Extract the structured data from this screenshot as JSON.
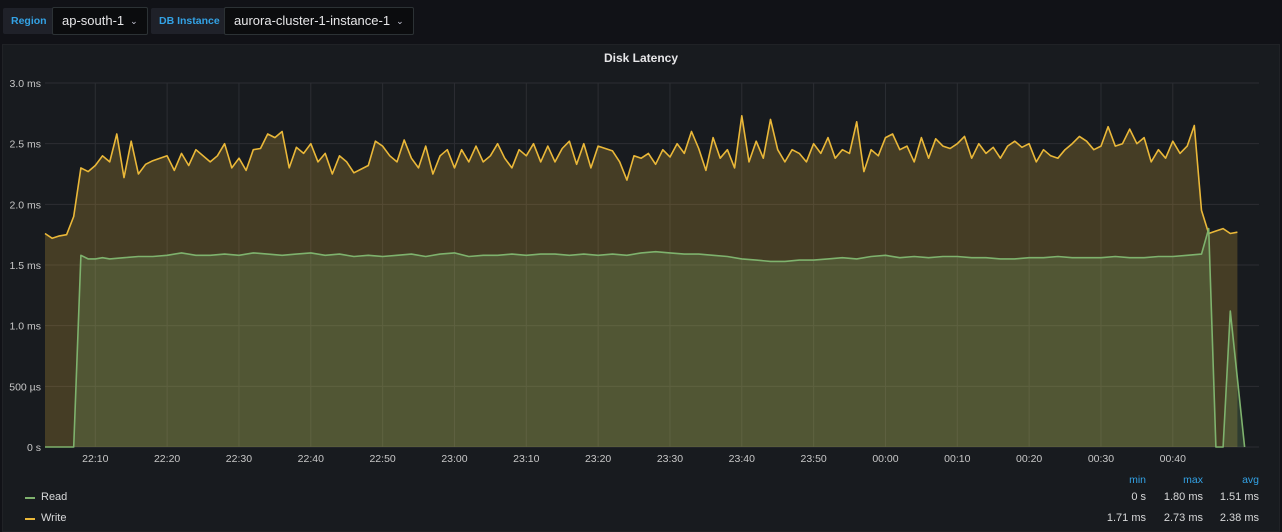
{
  "variables": [
    {
      "label": "Region",
      "value": "ap-south-1"
    },
    {
      "label": "DB Instance",
      "value": "aurora-cluster-1-instance-1"
    }
  ],
  "panel": {
    "title": "Disk Latency",
    "legend": {
      "headers": {
        "min": "min",
        "max": "max",
        "avg": "avg"
      },
      "rows": [
        {
          "name": "Read",
          "min": "0 s",
          "max": "1.80 ms",
          "avg": "1.51 ms"
        },
        {
          "name": "Write",
          "min": "1.71 ms",
          "max": "2.73 ms",
          "avg": "2.38 ms"
        }
      ]
    }
  },
  "colors": {
    "accent": "#33a2e5",
    "read": "#7eb26d",
    "write": "#eab839",
    "background": "#111217",
    "panel": "#181b1f"
  },
  "chart_data": {
    "type": "area",
    "title": "Disk Latency",
    "xlabel": "",
    "ylabel": "",
    "ylim": [
      0,
      3.0
    ],
    "y_unit": "ms",
    "y_ticks": [
      {
        "value": 0,
        "label": "0 s"
      },
      {
        "value": 0.5,
        "label": "500 µs"
      },
      {
        "value": 1.0,
        "label": "1.0 ms"
      },
      {
        "value": 1.5,
        "label": "1.5 ms"
      },
      {
        "value": 2.0,
        "label": "2.0 ms"
      },
      {
        "value": 2.5,
        "label": "2.5 ms"
      },
      {
        "value": 3.0,
        "label": "3.0 ms"
      }
    ],
    "x_ticks": [
      "22:10",
      "22:20",
      "22:30",
      "22:40",
      "22:50",
      "23:00",
      "23:10",
      "23:20",
      "23:30",
      "23:40",
      "23:50",
      "00:00",
      "00:10",
      "00:20",
      "00:30",
      "00:40"
    ],
    "x_start": "22:03",
    "x_end": "00:52",
    "grid": true,
    "legend_position": "bottom",
    "series": [
      {
        "name": "Read",
        "color": "#7eb26d",
        "points": [
          [
            "22:03",
            0
          ],
          [
            "22:06",
            0
          ],
          [
            "22:07",
            0
          ],
          [
            "22:08",
            1.58
          ],
          [
            "22:09",
            1.55
          ],
          [
            "22:10",
            1.55
          ],
          [
            "22:11",
            1.56
          ],
          [
            "22:12",
            1.55
          ],
          [
            "22:14",
            1.56
          ],
          [
            "22:16",
            1.57
          ],
          [
            "22:18",
            1.57
          ],
          [
            "22:20",
            1.58
          ],
          [
            "22:22",
            1.6
          ],
          [
            "22:24",
            1.58
          ],
          [
            "22:26",
            1.58
          ],
          [
            "22:28",
            1.59
          ],
          [
            "22:30",
            1.58
          ],
          [
            "22:32",
            1.6
          ],
          [
            "22:34",
            1.59
          ],
          [
            "22:36",
            1.58
          ],
          [
            "22:38",
            1.59
          ],
          [
            "22:40",
            1.6
          ],
          [
            "22:42",
            1.58
          ],
          [
            "22:44",
            1.59
          ],
          [
            "22:46",
            1.57
          ],
          [
            "22:48",
            1.58
          ],
          [
            "22:50",
            1.57
          ],
          [
            "22:52",
            1.58
          ],
          [
            "22:54",
            1.59
          ],
          [
            "22:56",
            1.57
          ],
          [
            "22:58",
            1.59
          ],
          [
            "23:00",
            1.6
          ],
          [
            "23:02",
            1.57
          ],
          [
            "23:04",
            1.58
          ],
          [
            "23:06",
            1.58
          ],
          [
            "23:08",
            1.59
          ],
          [
            "23:10",
            1.58
          ],
          [
            "23:12",
            1.59
          ],
          [
            "23:14",
            1.59
          ],
          [
            "23:16",
            1.58
          ],
          [
            "23:18",
            1.59
          ],
          [
            "23:20",
            1.58
          ],
          [
            "23:22",
            1.59
          ],
          [
            "23:24",
            1.58
          ],
          [
            "23:26",
            1.6
          ],
          [
            "23:28",
            1.61
          ],
          [
            "23:30",
            1.6
          ],
          [
            "23:32",
            1.59
          ],
          [
            "23:34",
            1.59
          ],
          [
            "23:36",
            1.58
          ],
          [
            "23:38",
            1.57
          ],
          [
            "23:40",
            1.55
          ],
          [
            "23:42",
            1.54
          ],
          [
            "23:44",
            1.53
          ],
          [
            "23:46",
            1.53
          ],
          [
            "23:48",
            1.54
          ],
          [
            "23:50",
            1.54
          ],
          [
            "23:52",
            1.55
          ],
          [
            "23:54",
            1.56
          ],
          [
            "23:56",
            1.55
          ],
          [
            "23:58",
            1.57
          ],
          [
            "00:00",
            1.58
          ],
          [
            "00:02",
            1.56
          ],
          [
            "00:04",
            1.57
          ],
          [
            "00:06",
            1.56
          ],
          [
            "00:08",
            1.57
          ],
          [
            "00:10",
            1.57
          ],
          [
            "00:12",
            1.56
          ],
          [
            "00:14",
            1.56
          ],
          [
            "00:16",
            1.55
          ],
          [
            "00:18",
            1.55
          ],
          [
            "00:20",
            1.56
          ],
          [
            "00:22",
            1.56
          ],
          [
            "00:24",
            1.57
          ],
          [
            "00:26",
            1.56
          ],
          [
            "00:28",
            1.56
          ],
          [
            "00:30",
            1.56
          ],
          [
            "00:32",
            1.57
          ],
          [
            "00:34",
            1.56
          ],
          [
            "00:36",
            1.56
          ],
          [
            "00:38",
            1.57
          ],
          [
            "00:40",
            1.57
          ],
          [
            "00:42",
            1.58
          ],
          [
            "00:44",
            1.59
          ],
          [
            "00:45",
            1.8
          ],
          [
            "00:46",
            0
          ],
          [
            "00:47",
            0
          ],
          [
            "00:48",
            1.12
          ],
          [
            "00:50",
            0
          ]
        ]
      },
      {
        "name": "Write",
        "color": "#eab839",
        "points": [
          [
            "22:03",
            1.76
          ],
          [
            "22:04",
            1.72
          ],
          [
            "22:05",
            1.74
          ],
          [
            "22:06",
            1.75
          ],
          [
            "22:07",
            1.9
          ],
          [
            "22:08",
            2.3
          ],
          [
            "22:09",
            2.27
          ],
          [
            "22:10",
            2.32
          ],
          [
            "22:11",
            2.4
          ],
          [
            "22:12",
            2.35
          ],
          [
            "22:13",
            2.58
          ],
          [
            "22:14",
            2.22
          ],
          [
            "22:15",
            2.52
          ],
          [
            "22:16",
            2.25
          ],
          [
            "22:17",
            2.33
          ],
          [
            "22:18",
            2.36
          ],
          [
            "22:20",
            2.4
          ],
          [
            "22:21",
            2.28
          ],
          [
            "22:22",
            2.42
          ],
          [
            "22:23",
            2.32
          ],
          [
            "22:24",
            2.45
          ],
          [
            "22:26",
            2.35
          ],
          [
            "22:27",
            2.4
          ],
          [
            "22:28",
            2.5
          ],
          [
            "22:29",
            2.3
          ],
          [
            "22:30",
            2.38
          ],
          [
            "22:31",
            2.28
          ],
          [
            "22:32",
            2.45
          ],
          [
            "22:33",
            2.46
          ],
          [
            "22:34",
            2.58
          ],
          [
            "22:35",
            2.55
          ],
          [
            "22:36",
            2.6
          ],
          [
            "22:37",
            2.3
          ],
          [
            "22:38",
            2.47
          ],
          [
            "22:39",
            2.42
          ],
          [
            "22:40",
            2.5
          ],
          [
            "22:41",
            2.35
          ],
          [
            "22:42",
            2.42
          ],
          [
            "22:43",
            2.25
          ],
          [
            "22:44",
            2.4
          ],
          [
            "22:45",
            2.35
          ],
          [
            "22:46",
            2.26
          ],
          [
            "22:48",
            2.32
          ],
          [
            "22:49",
            2.52
          ],
          [
            "22:50",
            2.48
          ],
          [
            "22:51",
            2.4
          ],
          [
            "22:52",
            2.35
          ],
          [
            "22:53",
            2.53
          ],
          [
            "22:54",
            2.38
          ],
          [
            "22:55",
            2.3
          ],
          [
            "22:56",
            2.48
          ],
          [
            "22:57",
            2.25
          ],
          [
            "22:58",
            2.4
          ],
          [
            "22:59",
            2.45
          ],
          [
            "23:00",
            2.3
          ],
          [
            "23:01",
            2.45
          ],
          [
            "23:02",
            2.35
          ],
          [
            "23:03",
            2.48
          ],
          [
            "23:04",
            2.35
          ],
          [
            "23:05",
            2.4
          ],
          [
            "23:06",
            2.5
          ],
          [
            "23:07",
            2.38
          ],
          [
            "23:08",
            2.3
          ],
          [
            "23:09",
            2.45
          ],
          [
            "23:10",
            2.4
          ],
          [
            "23:11",
            2.5
          ],
          [
            "23:12",
            2.35
          ],
          [
            "23:13",
            2.48
          ],
          [
            "23:14",
            2.35
          ],
          [
            "23:15",
            2.46
          ],
          [
            "23:16",
            2.52
          ],
          [
            "23:17",
            2.33
          ],
          [
            "23:18",
            2.5
          ],
          [
            "23:19",
            2.3
          ],
          [
            "23:20",
            2.48
          ],
          [
            "23:22",
            2.44
          ],
          [
            "23:23",
            2.35
          ],
          [
            "23:24",
            2.2
          ],
          [
            "23:25",
            2.4
          ],
          [
            "23:26",
            2.38
          ],
          [
            "23:27",
            2.42
          ],
          [
            "23:28",
            2.33
          ],
          [
            "23:29",
            2.45
          ],
          [
            "23:30",
            2.39
          ],
          [
            "23:31",
            2.5
          ],
          [
            "23:32",
            2.42
          ],
          [
            "23:33",
            2.6
          ],
          [
            "23:34",
            2.46
          ],
          [
            "23:35",
            2.28
          ],
          [
            "23:36",
            2.55
          ],
          [
            "23:37",
            2.38
          ],
          [
            "23:38",
            2.45
          ],
          [
            "23:39",
            2.3
          ],
          [
            "23:40",
            2.73
          ],
          [
            "23:41",
            2.35
          ],
          [
            "23:42",
            2.52
          ],
          [
            "23:43",
            2.38
          ],
          [
            "23:44",
            2.7
          ],
          [
            "23:45",
            2.45
          ],
          [
            "23:46",
            2.35
          ],
          [
            "23:47",
            2.45
          ],
          [
            "23:48",
            2.42
          ],
          [
            "23:49",
            2.35
          ],
          [
            "23:50",
            2.5
          ],
          [
            "23:51",
            2.42
          ],
          [
            "23:52",
            2.55
          ],
          [
            "23:53",
            2.38
          ],
          [
            "23:54",
            2.45
          ],
          [
            "23:55",
            2.42
          ],
          [
            "23:56",
            2.68
          ],
          [
            "23:57",
            2.27
          ],
          [
            "23:58",
            2.45
          ],
          [
            "23:59",
            2.4
          ],
          [
            "00:00",
            2.55
          ],
          [
            "00:01",
            2.58
          ],
          [
            "00:02",
            2.45
          ],
          [
            "00:03",
            2.48
          ],
          [
            "00:04",
            2.35
          ],
          [
            "00:05",
            2.55
          ],
          [
            "00:06",
            2.38
          ],
          [
            "00:07",
            2.54
          ],
          [
            "00:08",
            2.48
          ],
          [
            "00:09",
            2.46
          ],
          [
            "00:10",
            2.5
          ],
          [
            "00:11",
            2.56
          ],
          [
            "00:12",
            2.38
          ],
          [
            "00:13",
            2.5
          ],
          [
            "00:14",
            2.42
          ],
          [
            "00:15",
            2.47
          ],
          [
            "00:16",
            2.38
          ],
          [
            "00:17",
            2.48
          ],
          [
            "00:18",
            2.52
          ],
          [
            "00:19",
            2.47
          ],
          [
            "00:20",
            2.5
          ],
          [
            "00:21",
            2.35
          ],
          [
            "00:22",
            2.45
          ],
          [
            "00:23",
            2.4
          ],
          [
            "00:24",
            2.38
          ],
          [
            "00:25",
            2.45
          ],
          [
            "00:26",
            2.5
          ],
          [
            "00:27",
            2.56
          ],
          [
            "00:28",
            2.52
          ],
          [
            "00:29",
            2.45
          ],
          [
            "00:30",
            2.48
          ],
          [
            "00:31",
            2.64
          ],
          [
            "00:32",
            2.48
          ],
          [
            "00:33",
            2.5
          ],
          [
            "00:34",
            2.62
          ],
          [
            "00:35",
            2.5
          ],
          [
            "00:36",
            2.55
          ],
          [
            "00:37",
            2.35
          ],
          [
            "00:38",
            2.45
          ],
          [
            "00:39",
            2.38
          ],
          [
            "00:40",
            2.52
          ],
          [
            "00:41",
            2.42
          ],
          [
            "00:42",
            2.48
          ],
          [
            "00:43",
            2.65
          ],
          [
            "00:44",
            1.95
          ],
          [
            "00:45",
            1.76
          ],
          [
            "00:46",
            1.78
          ],
          [
            "00:47",
            1.8
          ],
          [
            "00:48",
            1.76
          ],
          [
            "00:49",
            1.77
          ]
        ]
      }
    ]
  }
}
